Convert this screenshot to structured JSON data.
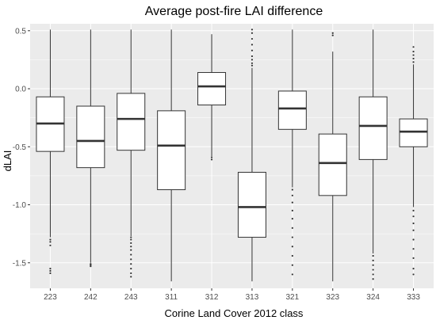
{
  "chart_data": {
    "type": "boxplot",
    "title": "Average post-fire LAI difference",
    "xlabel": "Corine Land Cover 2012 class",
    "ylabel": "dLAI",
    "ylim": [
      -1.72,
      0.56
    ],
    "yticks": [
      0.5,
      0.0,
      -0.5,
      -1.0,
      -1.5
    ],
    "ytick_labels": [
      "0.5",
      "0.0",
      "-0.5",
      "-1.0",
      "-1.5"
    ],
    "grid": true,
    "panel_color": "#ebebeb",
    "grid_color": "#ffffff",
    "box_fill": "#ffffff",
    "box_stroke": "#333333",
    "categories": [
      "223",
      "242",
      "243",
      "311",
      "312",
      "313",
      "321",
      "323",
      "324",
      "333"
    ],
    "boxes": [
      {
        "category": "223",
        "whisker_low": -1.28,
        "q1": -0.54,
        "median": -0.3,
        "q3": -0.07,
        "whisker_high": 0.51,
        "outliers": [
          -1.3,
          -1.32,
          -1.35,
          -1.55,
          -1.57,
          -1.59
        ]
      },
      {
        "category": "242",
        "whisker_low": -1.5,
        "q1": -0.68,
        "median": -0.45,
        "q3": -0.15,
        "whisker_high": 0.51,
        "outliers": [
          -1.51,
          -1.52,
          -1.53
        ]
      },
      {
        "category": "243",
        "whisker_low": -1.27,
        "q1": -0.53,
        "median": -0.26,
        "q3": -0.04,
        "whisker_high": 0.51,
        "outliers": [
          -1.28,
          -1.3,
          -1.33,
          -1.36,
          -1.39,
          -1.43,
          -1.47,
          -1.51,
          -1.55,
          -1.59,
          -1.62
        ]
      },
      {
        "category": "311",
        "whisker_low": -1.66,
        "q1": -0.87,
        "median": -0.49,
        "q3": -0.19,
        "whisker_high": 0.51,
        "outliers": []
      },
      {
        "category": "312",
        "whisker_low": -0.58,
        "q1": -0.14,
        "median": 0.02,
        "q3": 0.14,
        "whisker_high": 0.47,
        "outliers": [
          -0.59,
          -0.61
        ]
      },
      {
        "category": "313",
        "whisker_low": -1.66,
        "q1": -1.28,
        "median": -1.02,
        "q3": -0.72,
        "whisker_high": 0.18,
        "outliers": [
          0.2,
          0.22,
          0.25,
          0.28,
          0.33,
          0.38,
          0.43,
          0.48,
          0.51
        ]
      },
      {
        "category": "321",
        "whisker_low": -0.85,
        "q1": -0.35,
        "median": -0.17,
        "q3": -0.02,
        "whisker_high": 0.51,
        "outliers": [
          -0.87,
          -0.92,
          -0.98,
          -1.05,
          -1.12,
          -1.2,
          -1.28,
          -1.36,
          -1.44,
          -1.52,
          -1.6
        ]
      },
      {
        "category": "323",
        "whisker_low": -1.66,
        "q1": -0.92,
        "median": -0.64,
        "q3": -0.39,
        "whisker_high": 0.32,
        "outliers": [
          0.46,
          0.48
        ]
      },
      {
        "category": "324",
        "whisker_low": -1.42,
        "q1": -0.61,
        "median": -0.32,
        "q3": -0.07,
        "whisker_high": 0.51,
        "outliers": [
          -1.44,
          -1.48,
          -1.52,
          -1.56,
          -1.6,
          -1.64
        ]
      },
      {
        "category": "333",
        "whisker_low": -1.02,
        "q1": -0.5,
        "median": -0.37,
        "q3": -0.26,
        "whisker_high": 0.21,
        "outliers": [
          0.23,
          0.26,
          0.29,
          0.32,
          0.36,
          -1.05,
          -1.1,
          -1.16,
          -1.22,
          -1.3,
          -1.38,
          -1.46,
          -1.55,
          -1.6
        ]
      }
    ]
  }
}
